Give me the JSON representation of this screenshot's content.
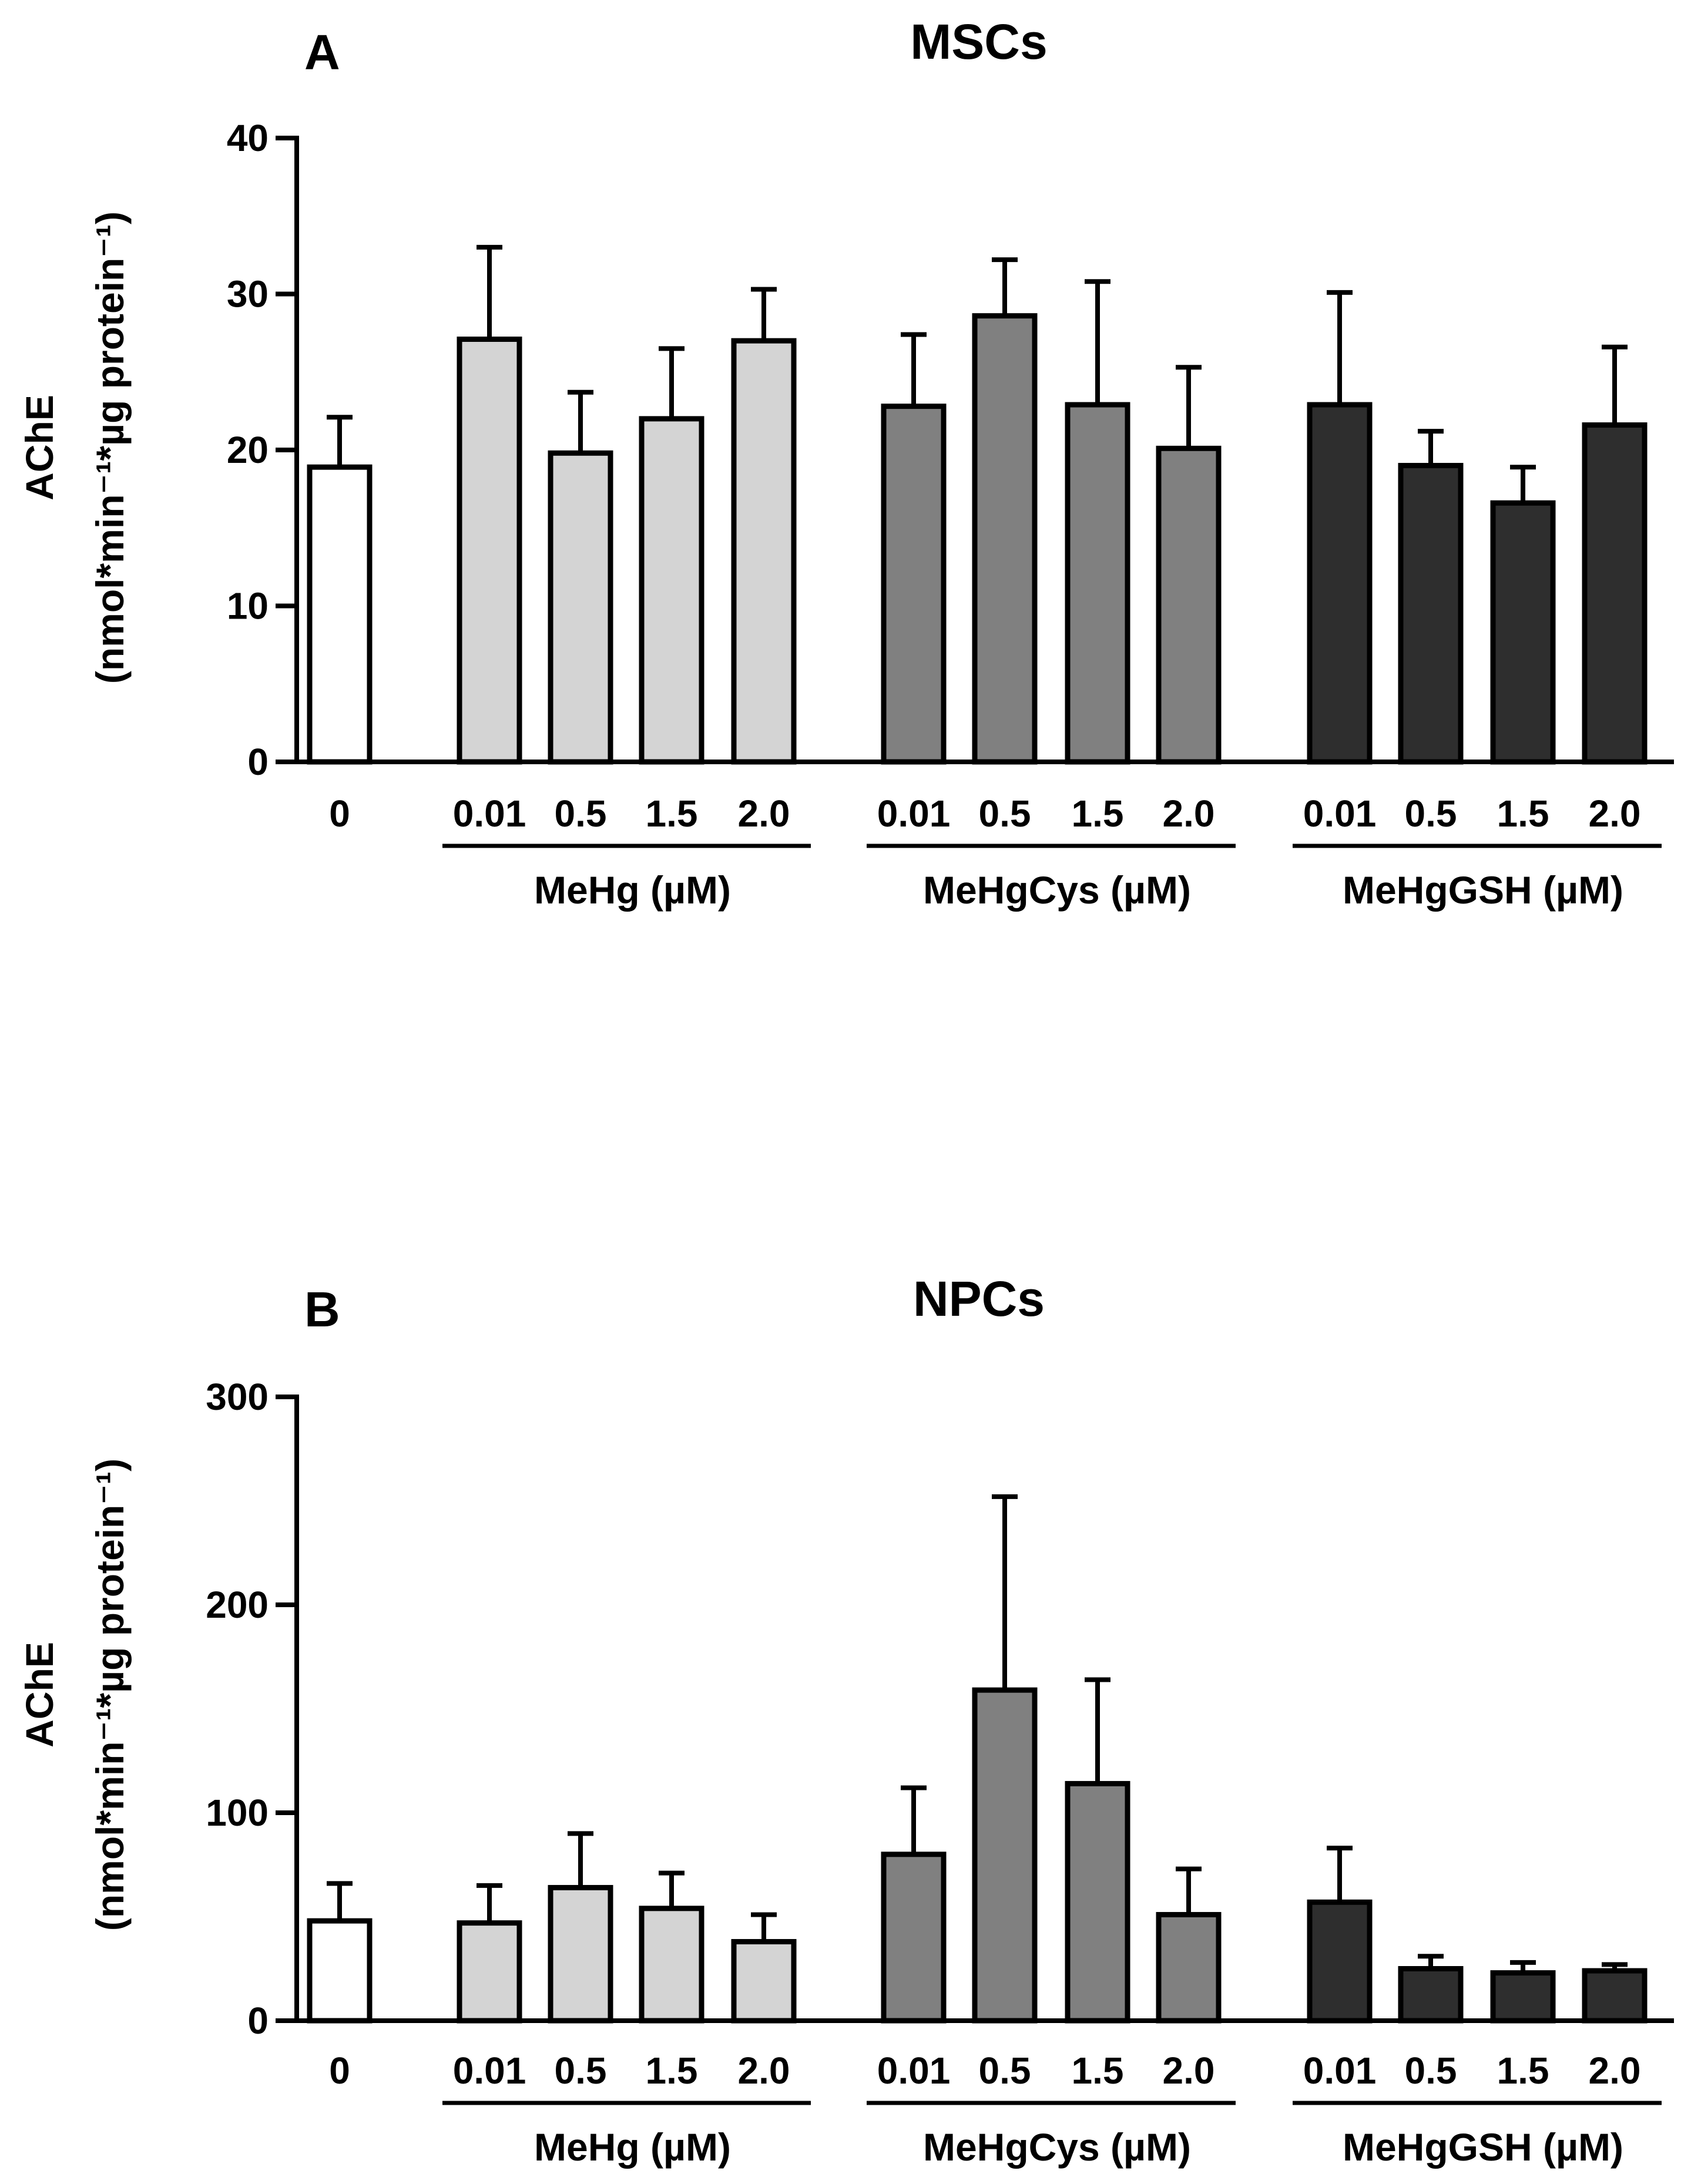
{
  "colors": {
    "control": "#ffffff",
    "MeHg": "#d4d4d4",
    "MeHgCys": "#808080",
    "MeHgGSH": "#2e2e2e",
    "stroke": "#000000"
  },
  "chart_data": [
    {
      "type": "bar",
      "panel": "A",
      "title": "MSCs",
      "ylabel_line1": "AChE",
      "ylabel_line2": "(nmol*min⁻¹*µg protein⁻¹)",
      "ylim": [
        0,
        40
      ],
      "yticks": [
        0,
        10,
        20,
        30,
        40
      ],
      "categories": [
        "0",
        "0.01",
        "0.5",
        "1.5",
        "2.0",
        "0.01",
        "0.5",
        "1.5",
        "2.0",
        "0.01",
        "0.5",
        "1.5",
        "2.0"
      ],
      "groups": [
        {
          "name": "",
          "color_key": "control",
          "labels": [
            "0"
          ],
          "values": [
            18.9
          ],
          "errors": [
            3.2
          ]
        },
        {
          "name": "MeHg (µM)",
          "color_key": "MeHg",
          "labels": [
            "0.01",
            "0.5",
            "1.5",
            "2.0"
          ],
          "values": [
            27.1,
            19.8,
            22.0,
            27.0
          ],
          "errors": [
            5.9,
            3.9,
            4.5,
            3.3
          ]
        },
        {
          "name": "MeHgCys (µM)",
          "color_key": "MeHgCys",
          "labels": [
            "0.01",
            "0.5",
            "1.5",
            "2.0"
          ],
          "values": [
            22.8,
            28.6,
            22.9,
            20.1
          ],
          "errors": [
            4.6,
            3.6,
            7.9,
            5.2
          ]
        },
        {
          "name": "MeHgGSH (µM)",
          "color_key": "MeHgGSH",
          "labels": [
            "0.01",
            "0.5",
            "1.5",
            "2.0"
          ],
          "values": [
            22.9,
            19.0,
            16.6,
            21.6
          ],
          "errors": [
            7.2,
            2.2,
            2.3,
            5.0
          ]
        }
      ]
    },
    {
      "type": "bar",
      "panel": "B",
      "title": "NPCs",
      "ylabel_line1": "AChE",
      "ylabel_line2": "(nmol*min⁻¹*µg protein⁻¹)",
      "ylim": [
        0,
        300
      ],
      "yticks": [
        0,
        100,
        200,
        300
      ],
      "categories": [
        "0",
        "0.01",
        "0.5",
        "1.5",
        "2.0",
        "0.01",
        "0.5",
        "1.5",
        "2.0",
        "0.01",
        "0.5",
        "1.5",
        "2.0"
      ],
      "groups": [
        {
          "name": "",
          "color_key": "control",
          "labels": [
            "0"
          ],
          "values": [
            48
          ],
          "errors": [
            18
          ]
        },
        {
          "name": "MeHg (µM)",
          "color_key": "MeHg",
          "labels": [
            "0.01",
            "0.5",
            "1.5",
            "2.0"
          ],
          "values": [
            47,
            64,
            54,
            38
          ],
          "errors": [
            18,
            26,
            17,
            13
          ]
        },
        {
          "name": "MeHgCys (µM)",
          "color_key": "MeHgCys",
          "labels": [
            "0.01",
            "0.5",
            "1.5",
            "2.0"
          ],
          "values": [
            80,
            159,
            114,
            51
          ],
          "errors": [
            32,
            93,
            50,
            22
          ]
        },
        {
          "name": "MeHgGSH (µM)",
          "color_key": "MeHgGSH",
          "labels": [
            "0.01",
            "0.5",
            "1.5",
            "2.0"
          ],
          "values": [
            57,
            25,
            23,
            24
          ],
          "errors": [
            26,
            6,
            5,
            3
          ]
        }
      ]
    }
  ]
}
